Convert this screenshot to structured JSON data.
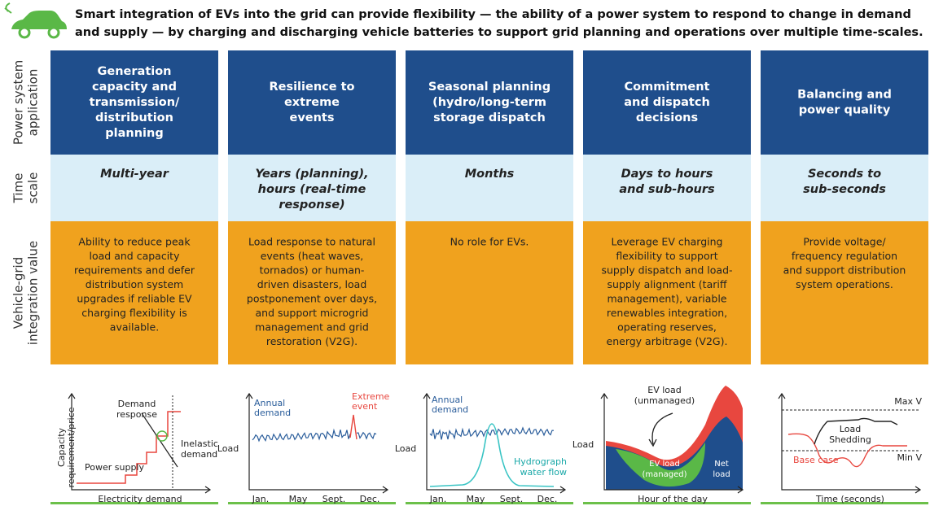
{
  "header": {
    "text_lines": [
      "Smart integration of EVs into the grid can provide flexibility — the ability of a power system to respond to change in demand",
      "and supply — by charging and discharging vehicle batteries to support grid planning and operations over multiple time-scales."
    ]
  },
  "row_labels": [
    [
      "Power system",
      "application"
    ],
    [
      "Time",
      "scale"
    ],
    [
      "Vehicle-grid",
      "integration value"
    ]
  ],
  "columns": [
    {
      "title": [
        "Generation",
        "capacity and",
        "transmission/",
        "distribution",
        "planning"
      ],
      "time_scale": [
        "Multi-year"
      ],
      "value": [
        "Ability to reduce peak",
        "load and capacity",
        "requirements and defer",
        "distribution system",
        "upgrades if reliable EV",
        "charging flexibility is",
        "available."
      ],
      "chart": {
        "y_label": [
          "Capacity",
          "requirement/price"
        ],
        "x_label": [
          "Electricity demand"
        ],
        "demand_response": [
          "Demand",
          "response"
        ],
        "inelastic_demand": [
          "Inelastic",
          "demand"
        ],
        "power_supply": [
          "Power supply"
        ]
      }
    },
    {
      "title": [
        "Resilience to",
        "extreme",
        "events"
      ],
      "time_scale": [
        "Years (planning),",
        "hours (real-time",
        "response)"
      ],
      "value": [
        "Load response to natural",
        "events (heat waves,",
        "tornados) or human-",
        "driven disasters, load",
        "postponement over days,",
        "and support microgrid",
        "management and grid",
        "restoration (V2G)."
      ],
      "chart": {
        "y_label": [
          "Load"
        ],
        "annual_demand": [
          "Annual",
          "demand"
        ],
        "extreme_event": [
          "Extreme",
          "event"
        ],
        "x_ticks": [
          "Jan.",
          "May",
          "Sept.",
          "Dec."
        ]
      }
    },
    {
      "title": [
        "Seasonal planning",
        "(hydro/long-term",
        "storage dispatch"
      ],
      "time_scale": [
        "Months"
      ],
      "value": [
        "No role for EVs."
      ],
      "chart": {
        "y_label": [
          "Load"
        ],
        "annual_demand": [
          "Annual",
          "demand"
        ],
        "hydrograph": [
          "Hydrograph",
          "water flow"
        ],
        "x_ticks": [
          "Jan.",
          "May",
          "Sept.",
          "Dec."
        ]
      }
    },
    {
      "title": [
        "Commitment",
        "and dispatch",
        "decisions"
      ],
      "time_scale": [
        "Days to hours",
        "and sub-hours"
      ],
      "value": [
        "Leverage EV charging",
        "flexibility to support",
        "supply dispatch and load-",
        "supply alignment (tariff",
        "management), variable",
        "renewables integration,",
        "operating reserves,",
        "energy arbitrage (V2G)."
      ],
      "chart": {
        "y_label": [
          "Load"
        ],
        "x_label": [
          "Hour of the day"
        ],
        "ev_unmanaged": [
          "EV load",
          "(unmanaged)"
        ],
        "ev_managed": [
          "EV load",
          "(managed)"
        ],
        "net_load": [
          "Net",
          "load"
        ]
      }
    },
    {
      "title": [
        "Balancing and",
        "power quality"
      ],
      "time_scale": [
        "Seconds to",
        "sub-seconds"
      ],
      "value": [
        "Provide voltage/",
        "frequency regulation",
        "and support distribution",
        "system operations."
      ],
      "chart": {
        "max_v": [
          "Max V"
        ],
        "min_v": [
          "Min V"
        ],
        "load_shedding": [
          "Load",
          "Shedding"
        ],
        "base_case": [
          "Base case"
        ],
        "x_label": [
          "Time (seconds)"
        ]
      }
    }
  ]
}
